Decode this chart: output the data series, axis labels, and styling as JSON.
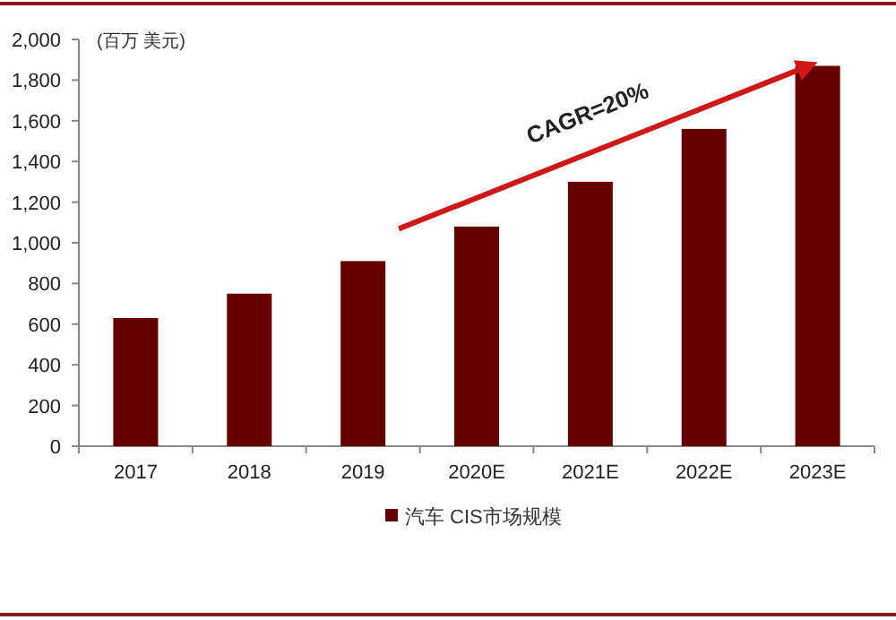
{
  "chart_data": {
    "type": "bar",
    "ylabel": "(百万 美元)",
    "categories": [
      "2017",
      "2018",
      "2019",
      "2020E",
      "2021E",
      "2022E",
      "2023E"
    ],
    "series": [
      {
        "name": "汽车 CIS市场规模",
        "color": "#660000",
        "values": [
          630,
          750,
          910,
          1080,
          1300,
          1560,
          1870
        ]
      }
    ],
    "ylim": [
      0,
      2000
    ],
    "yticks": [
      {
        "value": 0,
        "label": "0"
      },
      {
        "value": 200,
        "label": "200"
      },
      {
        "value": 400,
        "label": "400"
      },
      {
        "value": 600,
        "label": "600"
      },
      {
        "value": 800,
        "label": "800"
      },
      {
        "value": 1000,
        "label": "1,000"
      },
      {
        "value": 1200,
        "label": "1,200"
      },
      {
        "value": 1400,
        "label": "1,400"
      },
      {
        "value": 1600,
        "label": "1,600"
      },
      {
        "value": 1800,
        "label": "1,800"
      },
      {
        "value": 2000,
        "label": "2,000"
      }
    ],
    "annotations": [
      "CAGR=20%"
    ],
    "legend": "bottom",
    "grid": false
  }
}
